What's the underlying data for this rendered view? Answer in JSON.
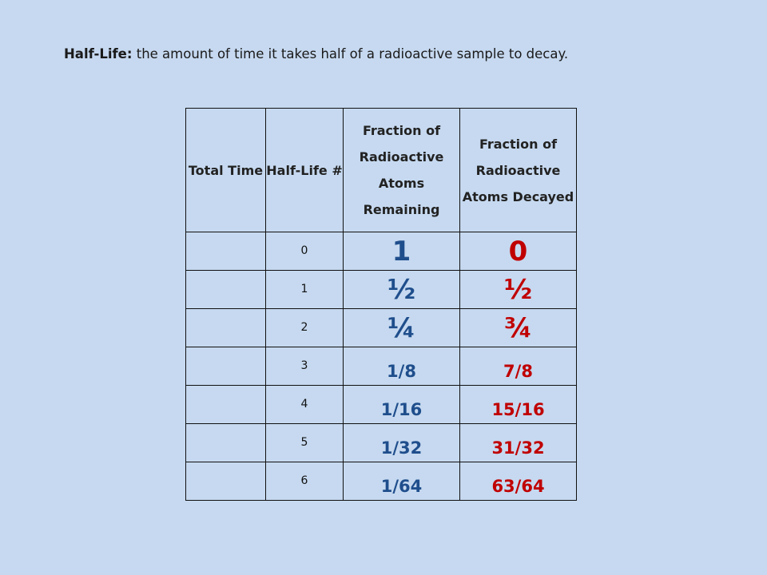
{
  "definition": {
    "term": "Half-Life:",
    "text": "the amount of time it takes half of a radioactive sample to decay."
  },
  "table": {
    "headers": [
      "Total Time",
      "Half-Life #",
      "Fraction of Radioactive Atoms Remaining",
      "Fraction of Radioactive Atoms Decayed"
    ],
    "rows": [
      {
        "total_time": "",
        "half_life": "0",
        "remaining": "1",
        "decayed": "0"
      },
      {
        "total_time": "",
        "half_life": "1",
        "remaining": "½",
        "decayed": "½"
      },
      {
        "total_time": "",
        "half_life": "2",
        "remaining": "¼",
        "decayed": "¾"
      },
      {
        "total_time": "",
        "half_life": "3",
        "remaining": "1/8",
        "decayed": "7/8"
      },
      {
        "total_time": "",
        "half_life": "4",
        "remaining": "1/16",
        "decayed": "15/16"
      },
      {
        "total_time": "",
        "half_life": "5",
        "remaining": "1/32",
        "decayed": "31/32"
      },
      {
        "total_time": "",
        "half_life": "6",
        "remaining": "1/64",
        "decayed": "63/64"
      }
    ]
  },
  "colors": {
    "background": "#c6d9f0",
    "remaining": "#1f4e8c",
    "decayed": "#c00000"
  }
}
